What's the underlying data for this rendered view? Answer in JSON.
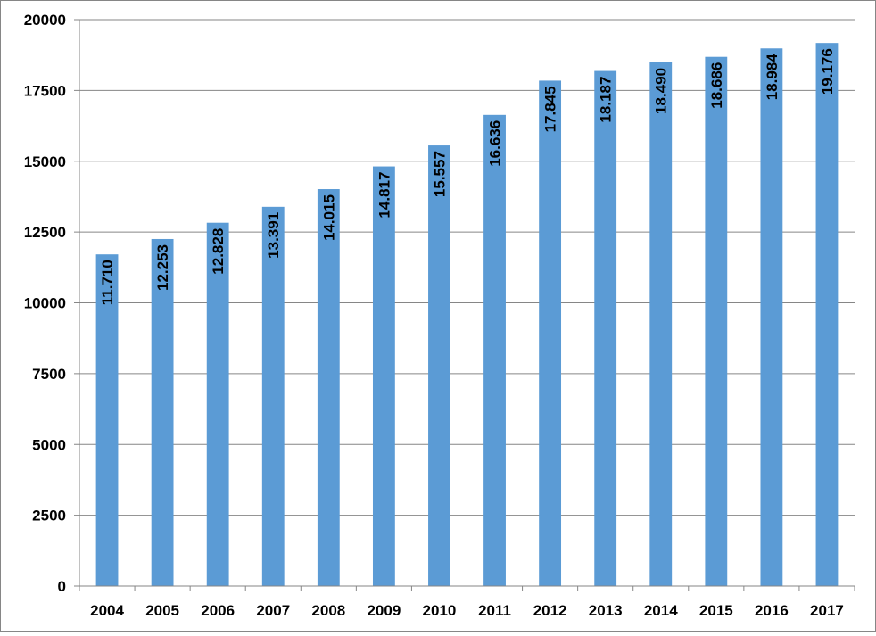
{
  "chart_data": {
    "type": "bar",
    "title": "",
    "xlabel": "",
    "ylabel": "",
    "categories": [
      "2004",
      "2005",
      "2006",
      "2007",
      "2008",
      "2009",
      "2010",
      "2011",
      "2012",
      "2013",
      "2014",
      "2015",
      "2016",
      "2017"
    ],
    "values": [
      11710,
      12253,
      12828,
      13391,
      14015,
      14817,
      15557,
      16636,
      17845,
      18187,
      18490,
      18686,
      18984,
      19176
    ],
    "data_labels": [
      "11.710",
      "12.253",
      "12.828",
      "13.391",
      "14.015",
      "14.817",
      "15.557",
      "16.636",
      "17.845",
      "18.187",
      "18.490",
      "18.686",
      "18.984",
      "19.176"
    ],
    "ylim": [
      0,
      20000
    ],
    "yticks": [
      0,
      2500,
      5000,
      7500,
      10000,
      12500,
      15000,
      17500,
      20000
    ],
    "ytick_labels": [
      "0",
      "2500",
      "5000",
      "7500",
      "10000",
      "12500",
      "15000",
      "17500",
      "20000"
    ],
    "grid": true,
    "legend": "none",
    "bar_color": "#5b9bd5",
    "grid_color": "#868686",
    "frame_color": "#868686"
  }
}
